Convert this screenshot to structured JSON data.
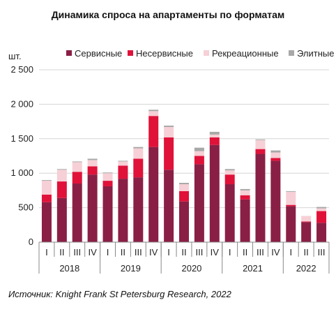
{
  "chart_data": {
    "type": "bar",
    "stacked": true,
    "title": "Динамика спроса на апартаменты по форматам",
    "ylabel": "шт.",
    "ylim": [
      0,
      2500
    ],
    "yticks": [
      "0",
      "500",
      "1 000",
      "1 500",
      "2 000",
      "2 500"
    ],
    "ytick_values": [
      0,
      500,
      1000,
      1500,
      2000,
      2500
    ],
    "grid": true,
    "legend_position": "top",
    "categories": [
      "I",
      "II",
      "III",
      "IV",
      "I",
      "II",
      "III",
      "IV",
      "I",
      "II",
      "III",
      "IV",
      "I",
      "II",
      "III",
      "IV",
      "I",
      "II",
      "III"
    ],
    "groups": [
      {
        "label": "2018",
        "count": 4
      },
      {
        "label": "2019",
        "count": 4
      },
      {
        "label": "2020",
        "count": 4
      },
      {
        "label": "2021",
        "count": 4
      },
      {
        "label": "2022",
        "count": 3
      }
    ],
    "series": [
      {
        "name": "Сервисные",
        "color": "#8a1f45",
        "values": [
          580,
          640,
          850,
          980,
          810,
          920,
          940,
          1380,
          1050,
          590,
          1130,
          1410,
          840,
          620,
          1280,
          1180,
          520,
          290,
          280
        ]
      },
      {
        "name": "Несервисные",
        "color": "#e0123a",
        "values": [
          110,
          240,
          170,
          120,
          80,
          190,
          270,
          450,
          470,
          150,
          120,
          110,
          140,
          60,
          70,
          40,
          20,
          10,
          170
        ]
      },
      {
        "name": "Рекреационные",
        "color": "#f6d0d6",
        "values": [
          200,
          170,
          140,
          90,
          110,
          60,
          150,
          70,
          150,
          100,
          70,
          40,
          60,
          70,
          130,
          80,
          190,
          80,
          40
        ]
      },
      {
        "name": "Элитные",
        "color": "#a8a8a8",
        "values": [
          10,
          10,
          10,
          20,
          10,
          10,
          20,
          20,
          20,
          20,
          50,
          40,
          20,
          20,
          10,
          30,
          10,
          0,
          20
        ]
      }
    ]
  },
  "source": "Источник: Knight Frank St Petersburg Research, 2022"
}
